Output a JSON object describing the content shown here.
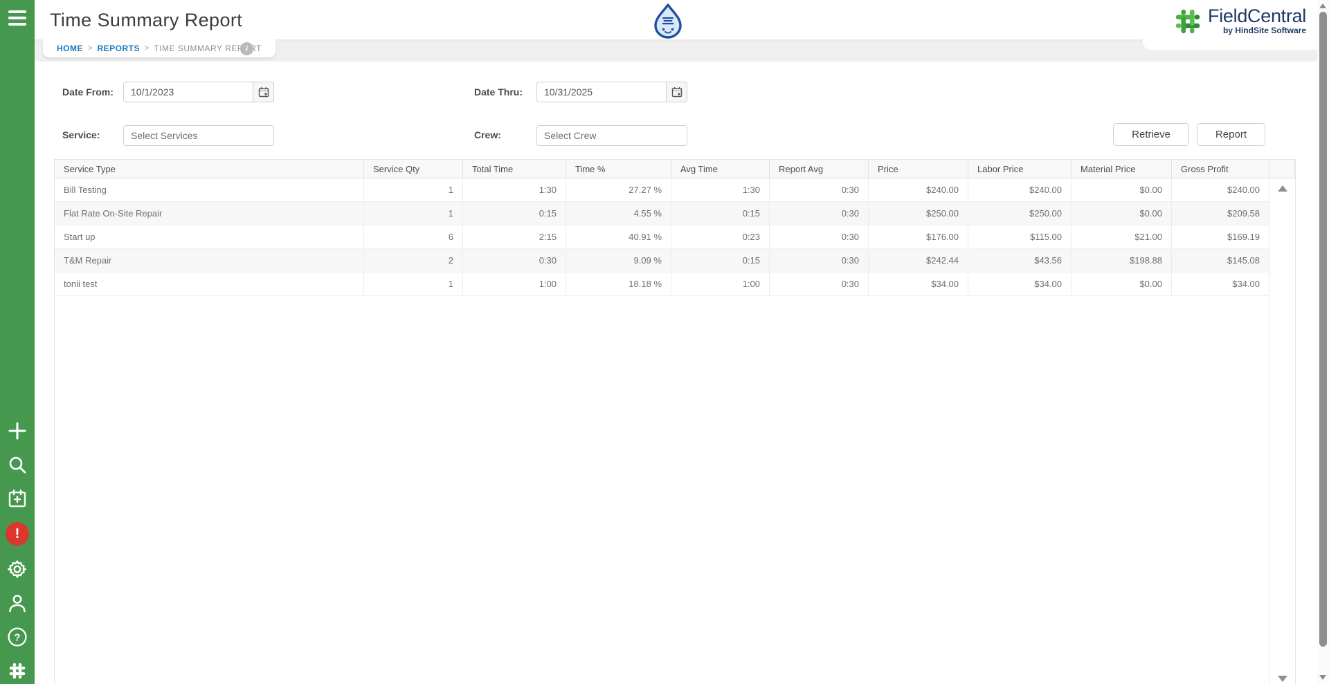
{
  "header": {
    "title": "Time Summary Report",
    "center_logo": "water-drop-mascot",
    "brand": {
      "name": "FieldCentral",
      "tagline": "by HindSite Software"
    }
  },
  "breadcrumb": {
    "items": [
      "HOME",
      "REPORTS",
      "TIME SUMMARY REPORT"
    ],
    "separator": ">",
    "info_glyph": "i"
  },
  "sidebar": {
    "top_icon": "menu-icon",
    "bottom_icons": [
      "add-icon",
      "search-icon",
      "calendar-add-icon",
      "alerts-icon",
      "settings-icon",
      "user-icon",
      "help-icon",
      "brand-pinwheel-icon"
    ],
    "alert_glyph": "!",
    "help_glyph": "?"
  },
  "filters": {
    "date_from": {
      "label": "Date From:",
      "value": "10/1/2023"
    },
    "date_thru": {
      "label": "Date Thru:",
      "value": "10/31/2025"
    },
    "service": {
      "label": "Service:",
      "placeholder": "Select Services"
    },
    "crew": {
      "label": "Crew:",
      "placeholder": "Select Crew"
    },
    "actions": {
      "retrieve": "Retrieve",
      "report": "Report"
    }
  },
  "table": {
    "columns": [
      "Service Type",
      "Service Qty",
      "Total Time",
      "Time %",
      "Avg Time",
      "Report Avg",
      "Price",
      "Labor Price",
      "Material Price",
      "Gross Profit"
    ],
    "rows": [
      [
        "Bill Testing",
        "1",
        "1:30",
        "27.27 %",
        "1:30",
        "0:30",
        "$240.00",
        "$240.00",
        "$0.00",
        "$240.00"
      ],
      [
        "Flat Rate On-Site Repair",
        "1",
        "0:15",
        "4.55 %",
        "0:15",
        "0:30",
        "$250.00",
        "$250.00",
        "$0.00",
        "$209.58"
      ],
      [
        "Start up",
        "6",
        "2:15",
        "40.91 %",
        "0:23",
        "0:30",
        "$176.00",
        "$115.00",
        "$21.00",
        "$169.19"
      ],
      [
        "T&M Repair",
        "2",
        "0:30",
        "9.09 %",
        "0:15",
        "0:30",
        "$242.44",
        "$43.56",
        "$198.88",
        "$145.08"
      ],
      [
        "tonii test",
        "1",
        "1:00",
        "18.18 %",
        "1:00",
        "0:30",
        "$34.00",
        "$34.00",
        "$0.00",
        "$34.00"
      ]
    ]
  },
  "colors": {
    "sidebar_green": "#45984E",
    "alert_red": "#DC372C",
    "link_blue": "#1878BE",
    "brand_navy": "#1C3A66",
    "brand_green": "#3EA13F",
    "drop_blue": "#1E4F9F",
    "band_gray": "#EFEFEF"
  }
}
